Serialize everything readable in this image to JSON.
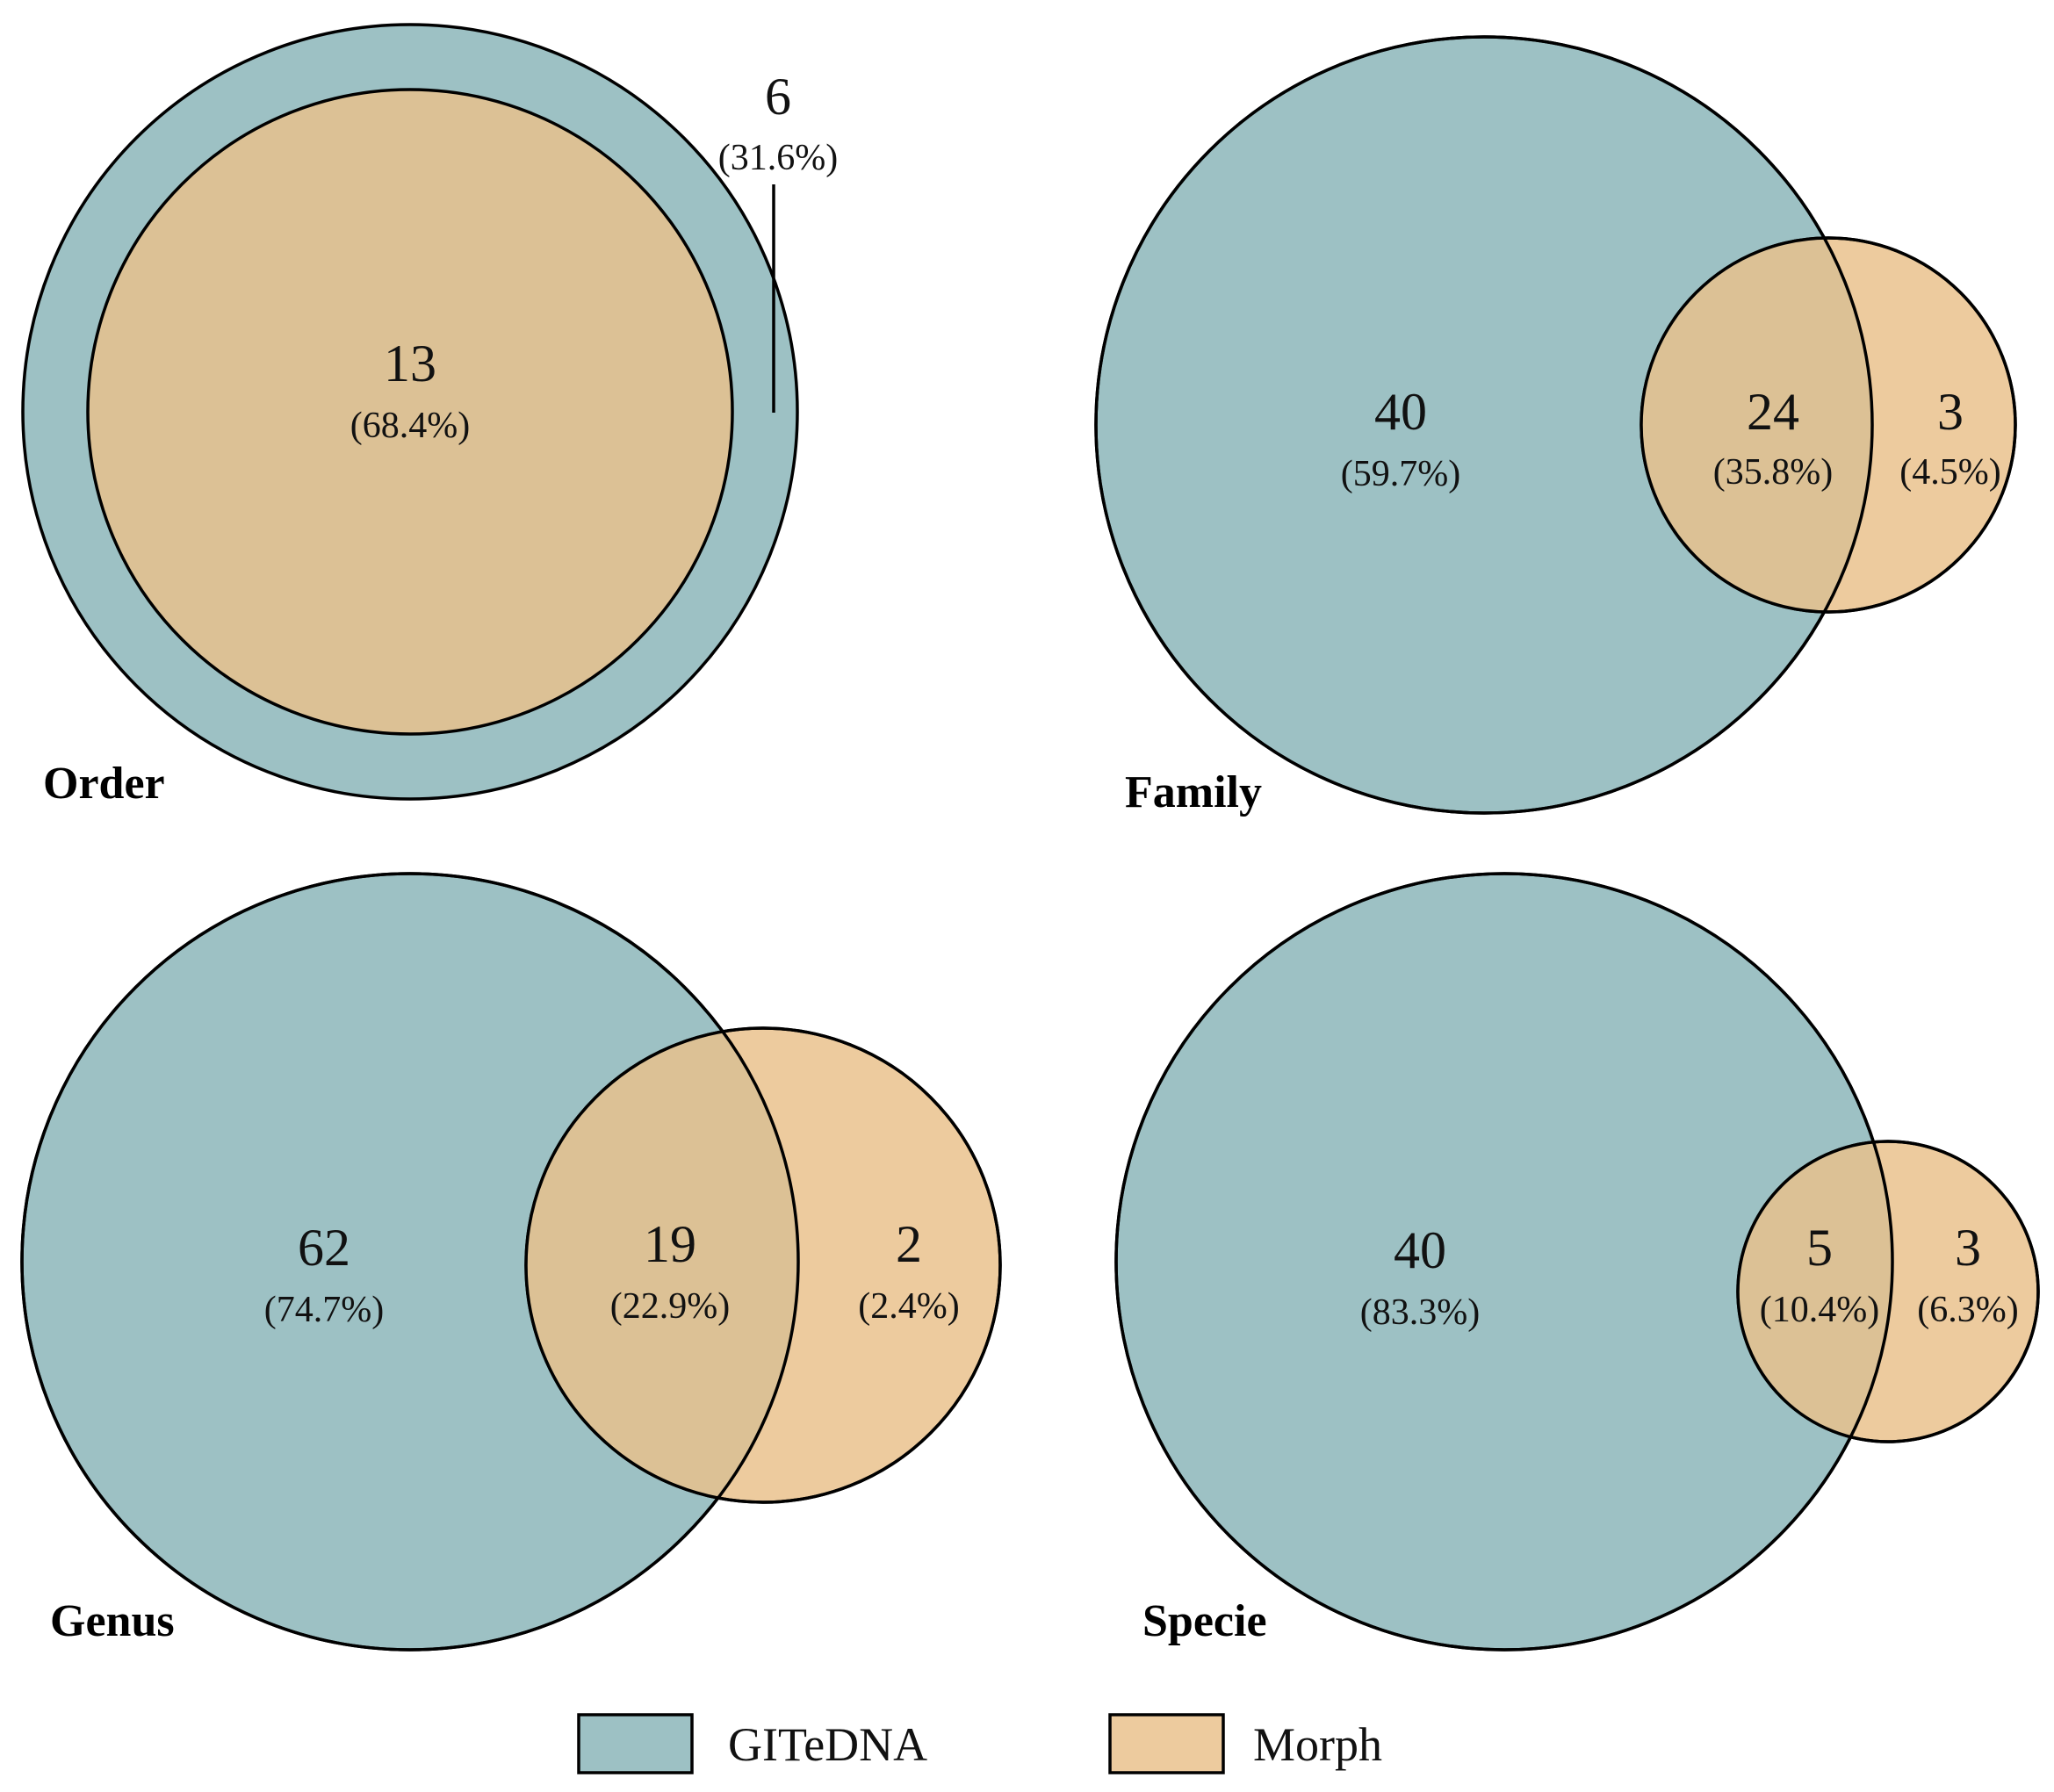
{
  "colors": {
    "gitedna": "#9DC1C4",
    "morph": "#EDCB9E",
    "overlap": "#DCC195"
  },
  "legend": {
    "gitedna": "GITeDNA",
    "morph": "Morph"
  },
  "panels": {
    "order": {
      "title": "Order",
      "overlap": {
        "count": "13",
        "pct": "(68.4%)"
      },
      "gitedna_only": {
        "count": "6",
        "pct": "(31.6%)"
      }
    },
    "family": {
      "title": "Family",
      "gitedna_only": {
        "count": "40",
        "pct": "(59.7%)"
      },
      "overlap": {
        "count": "24",
        "pct": "(35.8%)"
      },
      "morph_only": {
        "count": "3",
        "pct": "(4.5%)"
      }
    },
    "genus": {
      "title": "Genus",
      "gitedna_only": {
        "count": "62",
        "pct": "(74.7%)"
      },
      "overlap": {
        "count": "19",
        "pct": "(22.9%)"
      },
      "morph_only": {
        "count": "2",
        "pct": "(2.4%)"
      }
    },
    "specie": {
      "title": "Specie",
      "gitedna_only": {
        "count": "40",
        "pct": "(83.3%)"
      },
      "overlap": {
        "count": "5",
        "pct": "(10.4%)"
      },
      "morph_only": {
        "count": "3",
        "pct": "(6.3%)"
      }
    }
  }
}
